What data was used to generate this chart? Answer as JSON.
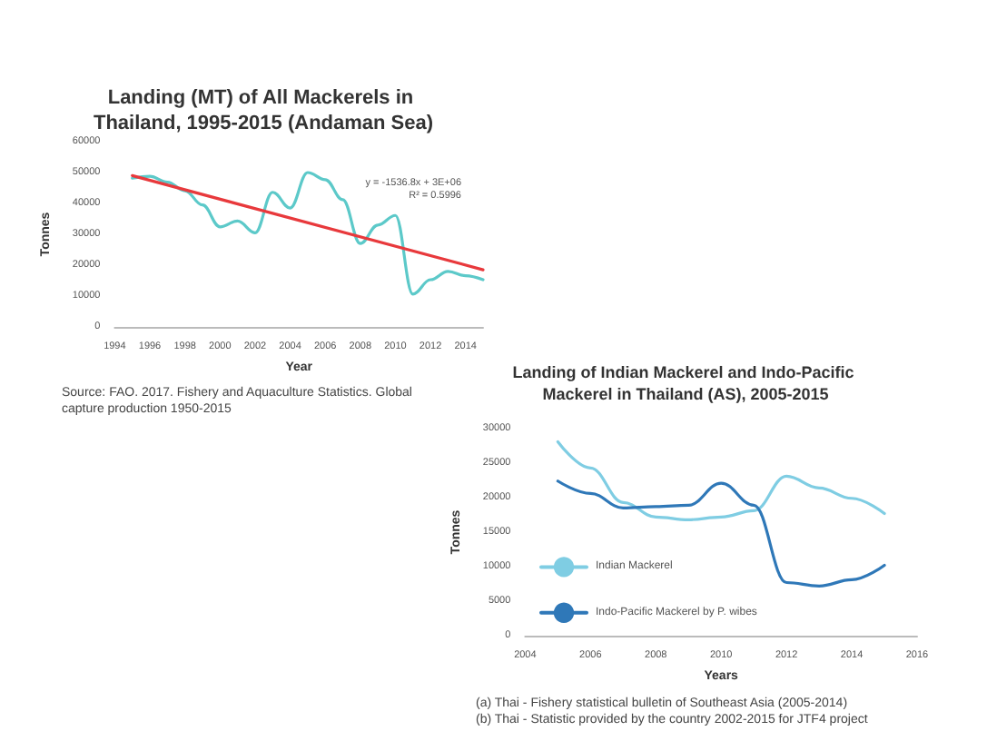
{
  "chart_data": [
    {
      "type": "line",
      "title": "Landing (MT) of All Mackerels in Thailand, 1995-2015 (Andaman Sea)",
      "xlabel": "Year",
      "ylabel": "Tonnes",
      "series": [
        {
          "color": "#5cc9c9",
          "x": [
            1995,
            1996,
            1997,
            1998,
            1999,
            2000,
            2001,
            2002,
            2003,
            2004,
            2005,
            2006,
            2007,
            2008,
            2009,
            2010,
            2011,
            2012,
            2013,
            2014,
            2015
          ],
          "values": [
            48200,
            48800,
            46900,
            44100,
            39500,
            32400,
            34300,
            30500,
            43600,
            38500,
            50000,
            47700,
            41200,
            27000,
            33000,
            36100,
            10600,
            15300,
            18000,
            16600,
            15300
          ]
        },
        {
          "color": "#e8393c",
          "x": [
            1995,
            2015
          ],
          "values": [
            49000,
            18500
          ]
        }
      ],
      "xlim": [
        1994,
        2015
      ],
      "xticks": [
        1994,
        1996,
        1998,
        2000,
        2002,
        2004,
        2006,
        2008,
        2010,
        2012,
        2014
      ],
      "ylim": [
        0,
        60000
      ],
      "yticks": [
        0,
        10000,
        20000,
        30000,
        40000,
        50000,
        60000
      ],
      "grid": false,
      "legend": false,
      "marker": "none",
      "line_style": "solid",
      "annotations": [
        "y = -1536.8x + 3E+06",
        "R² = 0.5996",
        "Source: FAO. 2017. Fishery and Aquaculture Statistics. Global capture production 1950-2015"
      ]
    },
    {
      "type": "line",
      "title": "Landing of Indian Mackerel and Indo-Pacific Mackerel in Thailand (AS), 2005-2015",
      "xlabel": "Years",
      "ylabel": "Tonnes",
      "series": [
        {
          "name": "Indian Mackerel",
          "color": "#7fcde3",
          "x": [
            2005,
            2006,
            2007,
            2008,
            2009,
            2010,
            2011,
            2012,
            2013,
            2014,
            2015
          ],
          "values": [
            28100,
            24300,
            19300,
            17200,
            16800,
            17200,
            18100,
            23100,
            21400,
            19900,
            17700
          ]
        },
        {
          "name": "Indo-Pacific Mackerel by P. wibes",
          "color": "#2f78b8",
          "x": [
            2005,
            2006,
            2007,
            2008,
            2009,
            2010,
            2011,
            2012,
            2013,
            2014,
            2015
          ],
          "values": [
            22400,
            20600,
            18500,
            18700,
            18900,
            22100,
            18900,
            7700,
            7200,
            8100,
            10200
          ]
        }
      ],
      "xlim": [
        2004,
        2016
      ],
      "xticks": [
        2004,
        2006,
        2008,
        2010,
        2012,
        2014,
        2016
      ],
      "ylim": [
        0,
        30000
      ],
      "yticks": [
        0,
        5000,
        10000,
        15000,
        20000,
        25000,
        30000
      ],
      "grid": false,
      "legend": "bottom left",
      "marker": "none",
      "line_style": "solid",
      "annotations": [
        "(a) Thai - Fishery statistical bulletin of Southeast Asia (2005-2014)",
        "(b) Thai - Statistic provided by the country 2002-2015 for JTF4 project"
      ]
    }
  ]
}
